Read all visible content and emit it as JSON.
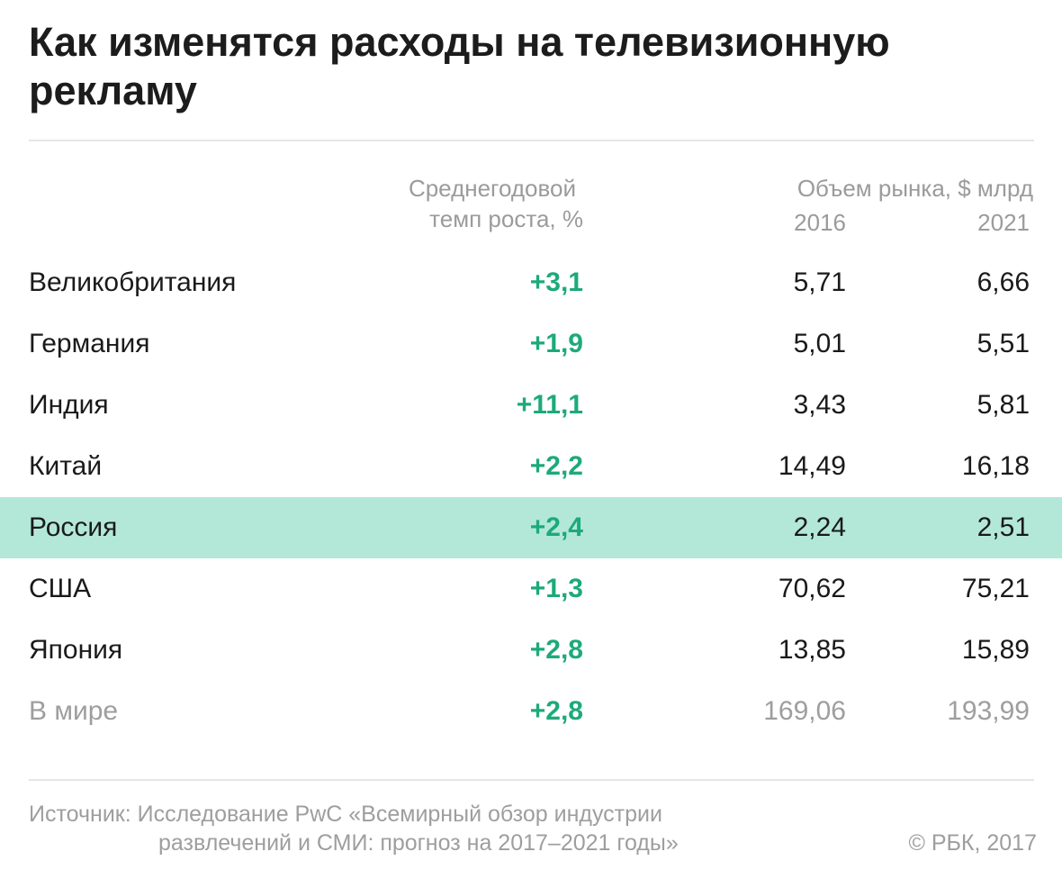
{
  "title": "Как изменятся расходы на телевизионную рекламу",
  "colors": {
    "growth": "#1daa7a",
    "highlight_row": "#b3e8d9",
    "muted": "#9e9e9e",
    "text": "#1a1a1a"
  },
  "headers": {
    "growth_line1": "Среднегодовой",
    "growth_line2": "темп роста, %",
    "market": "Объем рынка, $ млрд",
    "year1": "2016",
    "year2": "2021"
  },
  "chart_data": {
    "type": "table",
    "title": "Как изменятся расходы на телевизионную рекламу",
    "columns": [
      "",
      "Среднегодовой темп роста, %",
      "2016",
      "2021"
    ],
    "rows": [
      {
        "country": "Великобритания",
        "growth": "+3,1",
        "v2016": "5,71",
        "v2021": "6,66"
      },
      {
        "country": "Германия",
        "growth": "+1,9",
        "v2016": "5,01",
        "v2021": "5,51"
      },
      {
        "country": "Индия",
        "growth": "+11,1",
        "v2016": "3,43",
        "v2021": "5,81"
      },
      {
        "country": "Китай",
        "growth": "+2,2",
        "v2016": "14,49",
        "v2021": "16,18"
      },
      {
        "country": "Россия",
        "growth": "+2,4",
        "v2016": "2,24",
        "v2021": "2,51",
        "highlight": true
      },
      {
        "country": "США",
        "growth": "+1,3",
        "v2016": "70,62",
        "v2021": "75,21"
      },
      {
        "country": "Япония",
        "growth": "+2,8",
        "v2016": "13,85",
        "v2021": "15,89"
      },
      {
        "country": "В мире",
        "growth": "+2,8",
        "v2016": "169,06",
        "v2021": "193,99",
        "total": true
      }
    ]
  },
  "footer": {
    "source_line1": "Источник: Исследование PwC «Всемирный обзор индустрии",
    "source_line2": "развлечений и СМИ: прогноз на 2017–2021 годы»",
    "credit": "© РБК, 2017"
  }
}
